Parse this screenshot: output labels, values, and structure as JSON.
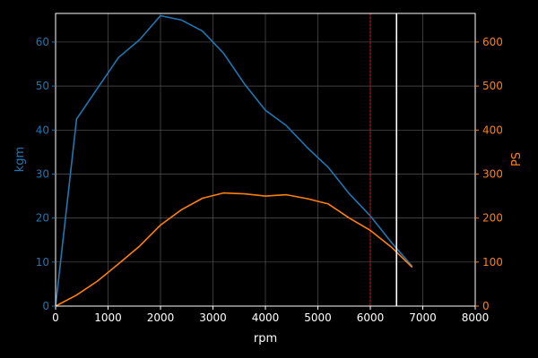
{
  "chart_data": {
    "type": "line",
    "background": "#000000",
    "grid": true,
    "grid_color": "#555555",
    "axis_color": "#ffffff",
    "x": {
      "label": "rpm",
      "lim": [
        0,
        8000
      ],
      "ticks": [
        0,
        1000,
        2000,
        3000,
        4000,
        5000,
        6000,
        7000,
        8000
      ],
      "tick_labels": [
        "0",
        "1000",
        "2000",
        "3000",
        "4000",
        "5000",
        "6000",
        "7000",
        "8000"
      ]
    },
    "y_left": {
      "label": "kgm",
      "color": "#1f77b4",
      "lim": [
        0,
        66.5
      ],
      "ticks": [
        0,
        10,
        20,
        30,
        40,
        50,
        60
      ],
      "tick_labels": [
        "0",
        "10",
        "20",
        "30",
        "40",
        "50",
        "60"
      ]
    },
    "y_right": {
      "label": "PS",
      "color": "#ff7f0e",
      "lim": [
        0,
        665
      ],
      "ticks": [
        0,
        100,
        200,
        300,
        400,
        500,
        600
      ],
      "tick_labels": [
        "0",
        "100",
        "200",
        "300",
        "400",
        "500",
        "600"
      ]
    },
    "series": [
      {
        "axis": "left",
        "color": "#1f77b4",
        "x": [
          0,
          400,
          800,
          1200,
          1600,
          2000,
          2400,
          2800,
          3200,
          3600,
          4000,
          4400,
          4800,
          5200,
          5600,
          6000,
          6400,
          6800
        ],
        "y": [
          0,
          42.5,
          49.5,
          56.5,
          60.5,
          66.0,
          65.0,
          62.5,
          57.5,
          50.5,
          44.5,
          41.0,
          36.0,
          31.5,
          25.5,
          20.5,
          14.5,
          9.0
        ]
      },
      {
        "axis": "right",
        "color": "#ff7f0e",
        "x": [
          0,
          400,
          800,
          1200,
          1600,
          2000,
          2400,
          2800,
          3200,
          3600,
          4000,
          4400,
          4800,
          5200,
          5600,
          6000,
          6400,
          6800
        ],
        "y": [
          0,
          25,
          57,
          96,
          136,
          184,
          219,
          245,
          257,
          255,
          250,
          253,
          244,
          232,
          200,
          172,
          134,
          88
        ]
      }
    ],
    "vlines": [
      {
        "x": 6000,
        "color": "#ff0000",
        "style": "dotted"
      },
      {
        "x": 6500,
        "color": "#ffffff",
        "style": "solid"
      }
    ]
  }
}
